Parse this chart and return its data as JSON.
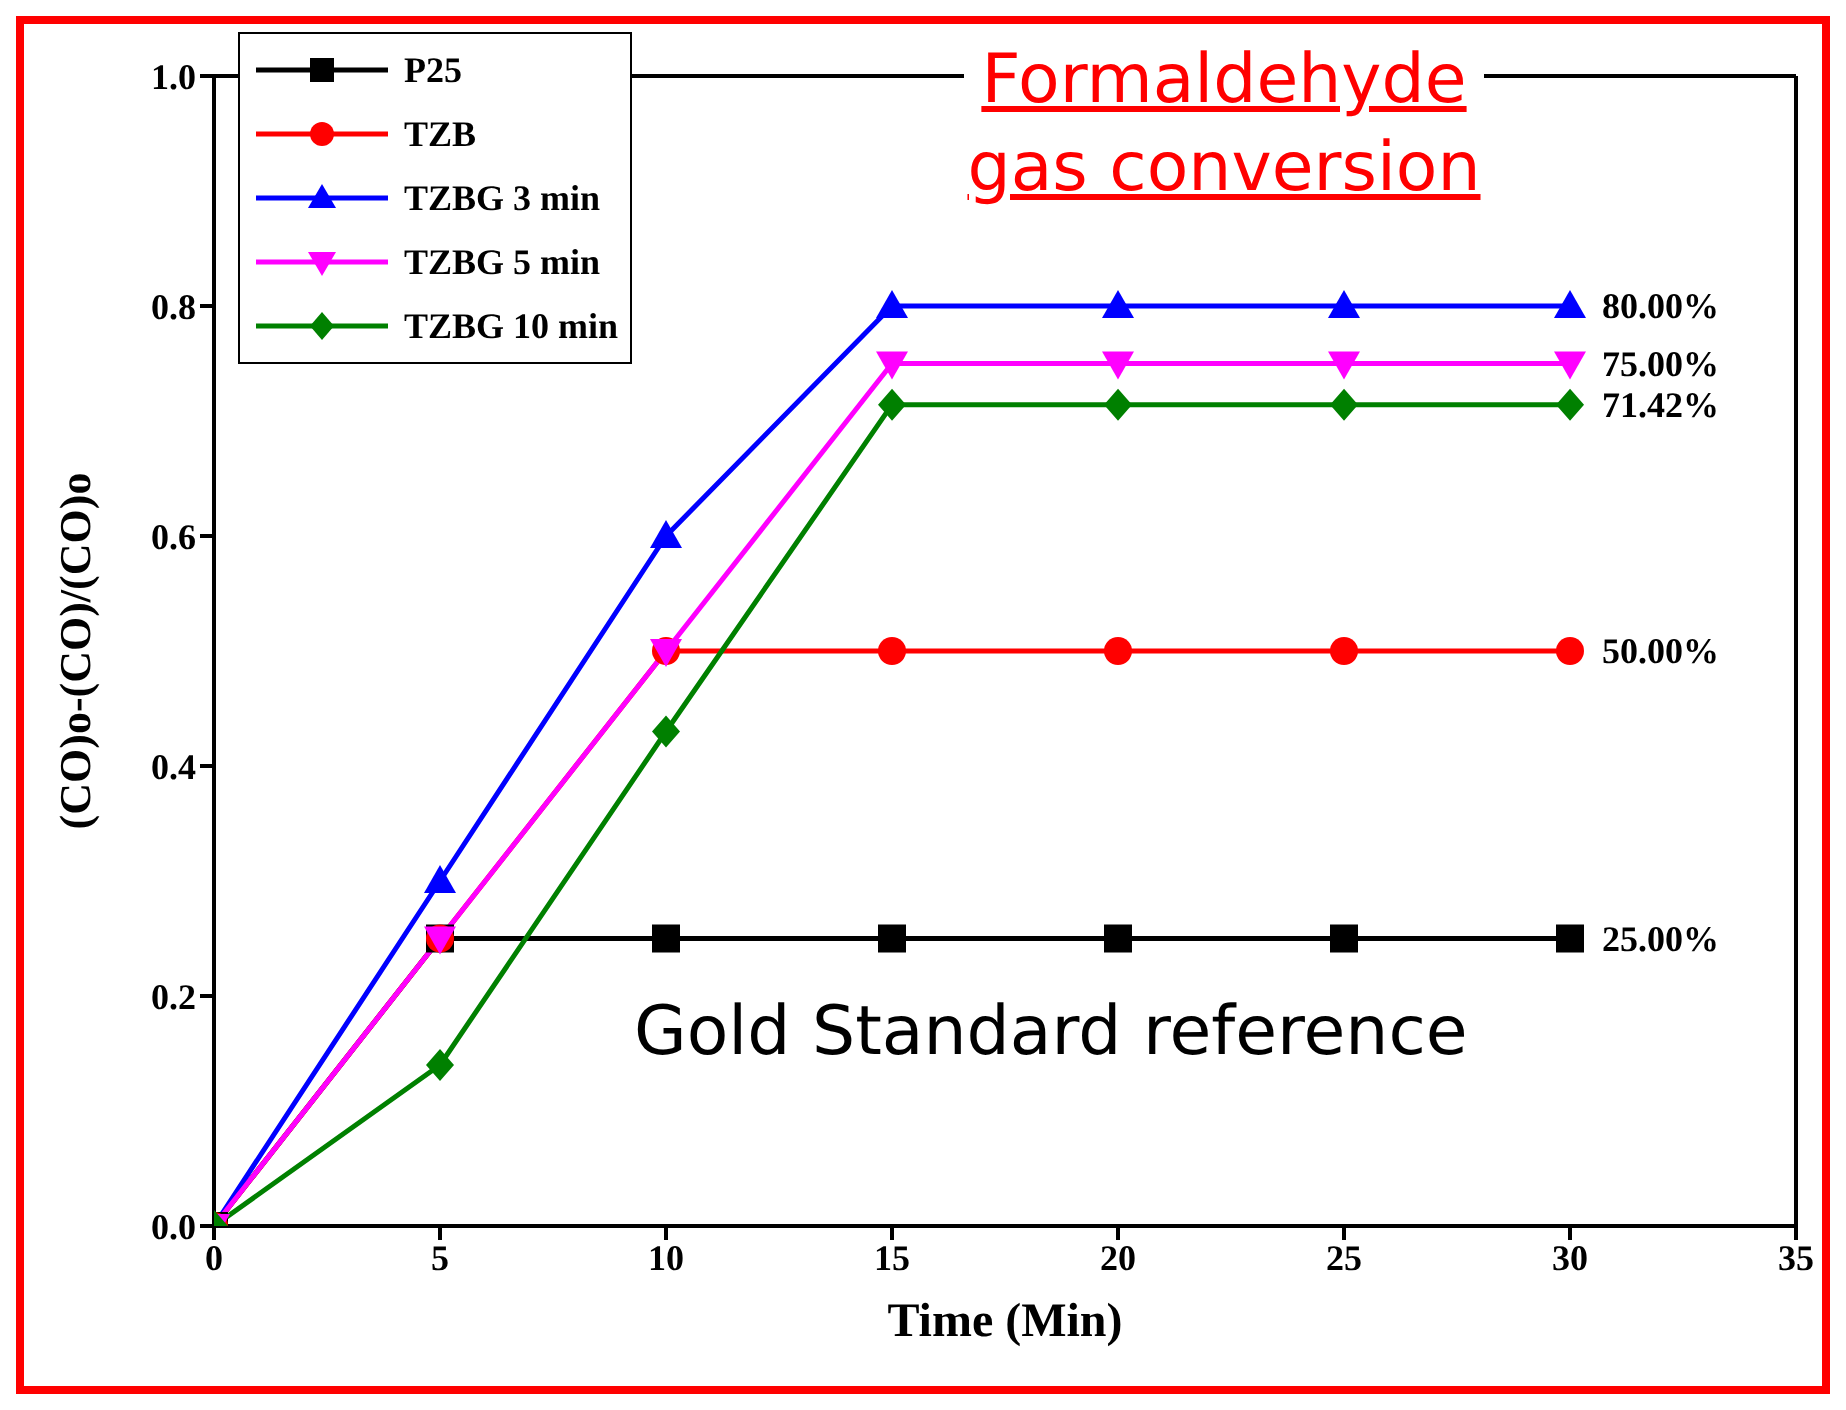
{
  "chart_data": {
    "type": "line",
    "title": "Formaldehyde gas conversion",
    "xlabel": "Time (Min)",
    "ylabel": "(CO)o-(CO)/(CO)o",
    "x": [
      0,
      5,
      10,
      15,
      20,
      25,
      30
    ],
    "series": [
      {
        "name": "P25",
        "color": "#000000",
        "marker": "square",
        "values": [
          0,
          0.25,
          0.25,
          0.25,
          0.25,
          0.25,
          0.25
        ],
        "value_labels": [
          null,
          null,
          null,
          null,
          null,
          null,
          "25.00%"
        ]
      },
      {
        "name": "TZB",
        "color": "#ff0000",
        "marker": "circle",
        "values": [
          0,
          0.25,
          0.5,
          0.5,
          0.5,
          0.5,
          0.5
        ],
        "value_labels": [
          null,
          null,
          null,
          null,
          null,
          null,
          "50.00%"
        ]
      },
      {
        "name": "TZBG 3 min",
        "color": "#0000ff",
        "marker": "triangle",
        "values": [
          0,
          0.3,
          0.6,
          0.8,
          0.8,
          0.8,
          0.8
        ],
        "value_labels": [
          null,
          null,
          null,
          null,
          null,
          null,
          "80.00%"
        ]
      },
      {
        "name": "TZBG 5 min",
        "color": "#ff00ff",
        "marker": "triangle-down",
        "values": [
          0,
          0.25,
          0.5,
          0.75,
          0.75,
          0.75,
          0.75
        ],
        "value_labels": [
          null,
          null,
          null,
          null,
          null,
          null,
          "75.00%"
        ]
      },
      {
        "name": "TZBG 10 min",
        "color": "#008000",
        "marker": "diamond",
        "values": [
          0,
          0.14,
          0.43,
          0.7142,
          0.7142,
          0.7142,
          0.7142
        ],
        "value_labels": [
          null,
          null,
          null,
          null,
          null,
          null,
          "71.42%"
        ]
      }
    ],
    "xlim": [
      0,
      35
    ],
    "xticks": [
      0,
      5,
      10,
      15,
      20,
      25,
      30,
      35
    ],
    "ylim": [
      0,
      1
    ],
    "yticks": [
      {
        "value": 0,
        "label": "0.0"
      },
      {
        "value": 0.2,
        "label": "0.2"
      },
      {
        "value": 0.4,
        "label": "0.4"
      },
      {
        "value": 0.6,
        "label": "0.6"
      },
      {
        "value": 0.8,
        "label": "0.8"
      },
      {
        "value": 1,
        "label": "1.0"
      }
    ],
    "annotations": [
      "Gold Standard reference"
    ],
    "grid": false,
    "legend": "top left"
  }
}
